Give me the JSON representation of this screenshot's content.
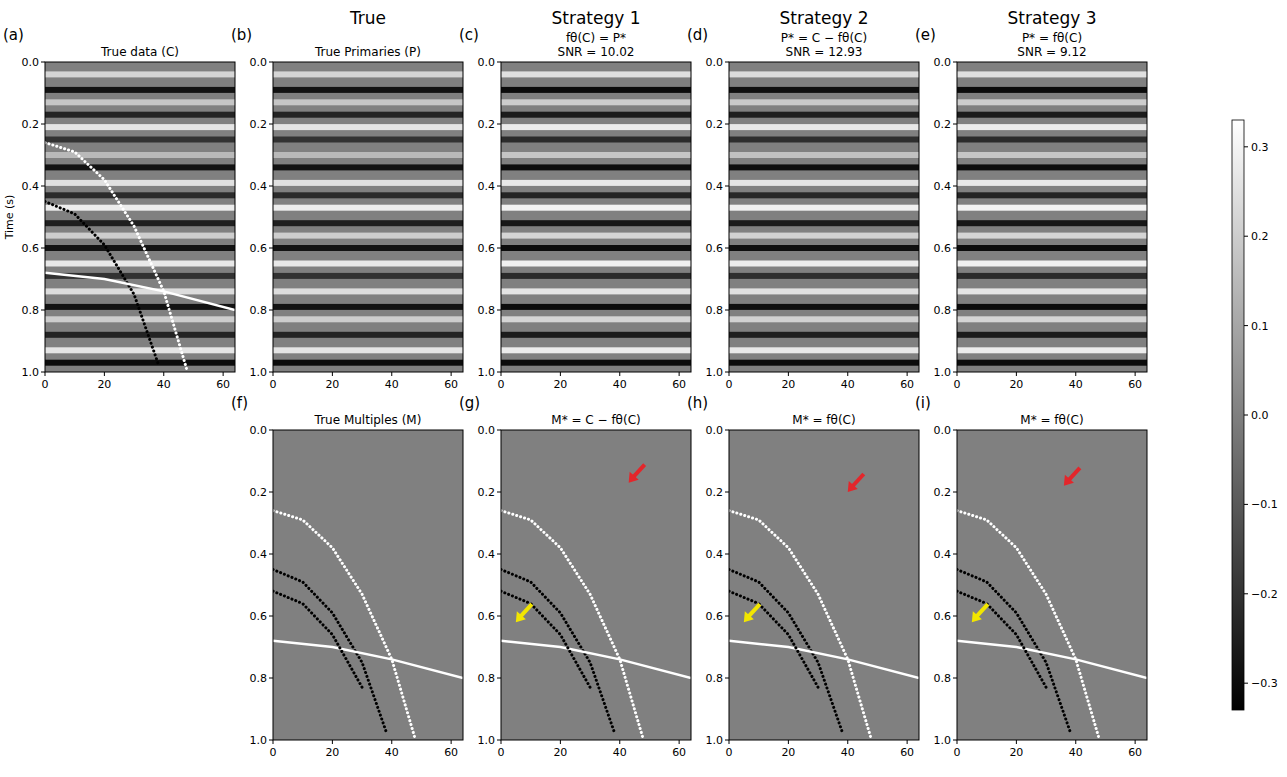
{
  "column_heads": [
    "True",
    "Strategy 1",
    "Strategy 2",
    "Strategy 3"
  ],
  "colorbar": {
    "range": [
      -0.33,
      0.33
    ],
    "ticks": [
      0.3,
      0.2,
      0.1,
      {
        "value": 0,
        "label": "0.0"
      },
      {
        "value": -0.1,
        "label": "−0.1"
      },
      {
        "value": -0.2,
        "label": "−0.2"
      },
      {
        "value": -0.3,
        "label": "−0.3"
      }
    ]
  },
  "chart_data": [
    {
      "type": "image",
      "letter": "(a)",
      "title": "True data (C)",
      "y_label": "Time (s)",
      "xlim": [
        0,
        64
      ],
      "ylim": [
        1.0,
        0
      ],
      "xticks": [
        0,
        20,
        40,
        60
      ],
      "yticks": [
        {
          "value": 0,
          "label": "0.0"
        },
        0.2,
        0.4,
        0.6,
        0.8,
        {
          "value": 1.0,
          "label": "1.0"
        }
      ],
      "reflectors": {
        "times": [
          0.04,
          0.09,
          0.13,
          0.17,
          0.21,
          0.25,
          0.3,
          0.34,
          0.39,
          0.43,
          0.47,
          0.52,
          0.56,
          0.6,
          0.65,
          0.69,
          0.74,
          0.79,
          0.83,
          0.88,
          0.93,
          0.97
        ],
        "amplitudes": [
          0.22,
          -0.28,
          0.18,
          -0.24,
          0.26,
          -0.2,
          0.15,
          -0.28,
          0.25,
          -0.22,
          0.28,
          -0.25,
          0.2,
          -0.28,
          0.27,
          -0.2,
          0.24,
          -0.28,
          0.2,
          -0.24,
          0.26,
          -0.3
        ]
      },
      "series": [
        {
          "color": "#ffffff",
          "line_style": "dotted",
          "x": [
            0,
            10,
            20,
            30,
            40,
            48
          ],
          "values": [
            0.26,
            0.29,
            0.38,
            0.53,
            0.74,
            1.0
          ]
        },
        {
          "color": "#000000",
          "line_style": "dotted",
          "x": [
            0,
            10,
            20,
            30,
            38
          ],
          "values": [
            0.45,
            0.49,
            0.59,
            0.75,
            0.97
          ]
        },
        {
          "color": "#ffffff",
          "line_style": "solid",
          "x": [
            0,
            20,
            40,
            64
          ],
          "values": [
            0.68,
            0.7,
            0.74,
            0.8
          ]
        }
      ]
    },
    {
      "type": "image",
      "letter": "(b)",
      "title": "True Primaries (P)",
      "xlim": [
        0,
        64
      ],
      "ylim": [
        1.0,
        0
      ],
      "xticks": [
        0,
        20,
        40,
        60
      ],
      "yticks": [
        {
          "value": 0,
          "label": "0.0"
        },
        0.2,
        0.4,
        0.6,
        0.8,
        {
          "value": 1.0,
          "label": "1.0"
        }
      ],
      "reflectors": {
        "times": [
          0.04,
          0.09,
          0.13,
          0.17,
          0.21,
          0.25,
          0.3,
          0.34,
          0.39,
          0.43,
          0.47,
          0.52,
          0.56,
          0.6,
          0.65,
          0.69,
          0.74,
          0.79,
          0.83,
          0.88,
          0.93,
          0.97
        ],
        "amplitudes": [
          0.22,
          -0.28,
          0.18,
          -0.24,
          0.26,
          -0.2,
          0.15,
          -0.28,
          0.25,
          -0.22,
          0.28,
          -0.25,
          0.2,
          -0.28,
          0.27,
          -0.2,
          0.24,
          -0.28,
          0.2,
          -0.24,
          0.26,
          -0.3
        ]
      }
    },
    {
      "type": "image",
      "letter": "(c)",
      "title": "fθ(C) = P*",
      "subtitle": "SNR = 10.02",
      "xlim": [
        0,
        64
      ],
      "ylim": [
        1.0,
        0
      ],
      "xticks": [
        0,
        20,
        40,
        60
      ],
      "yticks": [
        {
          "value": 0,
          "label": "0.0"
        },
        0.2,
        0.4,
        0.6,
        0.8,
        {
          "value": 1.0,
          "label": "1.0"
        }
      ],
      "reflectors": {
        "times": [
          0.04,
          0.09,
          0.13,
          0.17,
          0.21,
          0.25,
          0.3,
          0.34,
          0.39,
          0.43,
          0.47,
          0.52,
          0.56,
          0.6,
          0.65,
          0.69,
          0.74,
          0.79,
          0.83,
          0.88,
          0.93,
          0.97
        ],
        "amplitudes": [
          0.25,
          -0.3,
          0.2,
          -0.26,
          0.28,
          -0.22,
          0.18,
          -0.3,
          0.27,
          -0.24,
          0.3,
          -0.27,
          0.22,
          -0.3,
          0.29,
          -0.22,
          0.26,
          -0.3,
          0.22,
          -0.26,
          0.28,
          -0.3
        ]
      }
    },
    {
      "type": "image",
      "letter": "(d)",
      "title": "P* = C − fθ(C)",
      "subtitle": "SNR = 12.93",
      "xlim": [
        0,
        64
      ],
      "ylim": [
        1.0,
        0
      ],
      "xticks": [
        0,
        20,
        40,
        60
      ],
      "yticks": [
        {
          "value": 0,
          "label": "0.0"
        },
        0.2,
        0.4,
        0.6,
        0.8,
        {
          "value": 1.0,
          "label": "1.0"
        }
      ],
      "reflectors": {
        "times": [
          0.04,
          0.09,
          0.13,
          0.17,
          0.21,
          0.25,
          0.3,
          0.34,
          0.39,
          0.43,
          0.47,
          0.52,
          0.56,
          0.6,
          0.65,
          0.69,
          0.74,
          0.79,
          0.83,
          0.88,
          0.93,
          0.97
        ],
        "amplitudes": [
          0.24,
          -0.29,
          0.19,
          -0.25,
          0.27,
          -0.21,
          0.17,
          -0.29,
          0.26,
          -0.23,
          0.29,
          -0.26,
          0.21,
          -0.29,
          0.28,
          -0.21,
          0.25,
          -0.29,
          0.21,
          -0.25,
          0.27,
          -0.3
        ]
      }
    },
    {
      "type": "image",
      "letter": "(e)",
      "title": "P* = fθ(C)",
      "subtitle": "SNR = 9.12",
      "xlim": [
        0,
        64
      ],
      "ylim": [
        1.0,
        0
      ],
      "xticks": [
        0,
        20,
        40,
        60
      ],
      "yticks": [
        {
          "value": 0,
          "label": "0.0"
        },
        0.2,
        0.4,
        0.6,
        0.8,
        {
          "value": 1.0,
          "label": "1.0"
        }
      ],
      "reflectors": {
        "times": [
          0.04,
          0.09,
          0.13,
          0.17,
          0.21,
          0.25,
          0.3,
          0.34,
          0.39,
          0.43,
          0.47,
          0.52,
          0.56,
          0.6,
          0.65,
          0.69,
          0.74,
          0.79,
          0.83,
          0.88,
          0.93,
          0.97
        ],
        "amplitudes": [
          0.25,
          -0.3,
          0.2,
          -0.26,
          0.28,
          -0.22,
          0.18,
          -0.3,
          0.27,
          -0.24,
          0.3,
          -0.27,
          0.22,
          -0.3,
          0.29,
          -0.22,
          0.26,
          -0.3,
          0.22,
          -0.26,
          0.28,
          -0.3
        ]
      }
    },
    {
      "type": "image",
      "letter": "(f)",
      "title": "True Multiples (M)",
      "xlim": [
        0,
        64
      ],
      "ylim": [
        1.0,
        0
      ],
      "xticks": [
        0,
        20,
        40,
        60
      ],
      "yticks": [
        {
          "value": 0,
          "label": "0.0"
        },
        0.2,
        0.4,
        0.6,
        0.8,
        {
          "value": 1.0,
          "label": "1.0"
        }
      ],
      "series": [
        {
          "color": "#ffffff",
          "line_style": "dotted",
          "x": [
            0,
            10,
            20,
            30,
            40,
            48
          ],
          "values": [
            0.26,
            0.29,
            0.38,
            0.53,
            0.74,
            1.0
          ]
        },
        {
          "color": "#000000",
          "line_style": "dotted",
          "x": [
            0,
            10,
            20,
            30,
            38
          ],
          "values": [
            0.45,
            0.49,
            0.59,
            0.75,
            0.97
          ]
        },
        {
          "color": "#ffffff",
          "line_style": "solid",
          "x": [
            0,
            20,
            40,
            64
          ],
          "values": [
            0.68,
            0.7,
            0.74,
            0.8
          ]
        },
        {
          "color": "#000000",
          "line_style": "dotted",
          "x": [
            0,
            10,
            20,
            30
          ],
          "values": [
            0.52,
            0.56,
            0.66,
            0.83
          ]
        }
      ]
    },
    {
      "type": "image",
      "letter": "(g)",
      "title": "M* = C − fθ(C)",
      "xlim": [
        0,
        64
      ],
      "ylim": [
        1.0,
        0
      ],
      "xticks": [
        0,
        20,
        40,
        60
      ],
      "yticks": [
        {
          "value": 0,
          "label": "0.0"
        },
        0.2,
        0.4,
        0.6,
        0.8,
        {
          "value": 1.0,
          "label": "1.0"
        }
      ],
      "series": [
        {
          "color": "#ffffff",
          "line_style": "dotted",
          "x": [
            0,
            10,
            20,
            30,
            40,
            48
          ],
          "values": [
            0.26,
            0.29,
            0.38,
            0.53,
            0.74,
            1.0
          ]
        },
        {
          "color": "#000000",
          "line_style": "dotted",
          "x": [
            0,
            10,
            20,
            30,
            38
          ],
          "values": [
            0.45,
            0.49,
            0.59,
            0.75,
            0.97
          ]
        },
        {
          "color": "#ffffff",
          "line_style": "solid",
          "x": [
            0,
            20,
            40,
            64
          ],
          "values": [
            0.68,
            0.7,
            0.74,
            0.8
          ]
        },
        {
          "color": "#000000",
          "line_style": "dotted",
          "x": [
            0,
            10,
            20,
            30
          ],
          "values": [
            0.52,
            0.56,
            0.66,
            0.83
          ]
        }
      ],
      "annotations": [
        {
          "x": 43,
          "y": 0.17,
          "color": "#e3262b"
        },
        {
          "x": 5,
          "y": 0.62,
          "color": "#f2e600"
        }
      ]
    },
    {
      "type": "image",
      "letter": "(h)",
      "title": "M* = fθ(C)",
      "xlim": [
        0,
        64
      ],
      "ylim": [
        1.0,
        0
      ],
      "xticks": [
        0,
        20,
        40,
        60
      ],
      "yticks": [
        {
          "value": 0,
          "label": "0.0"
        },
        0.2,
        0.4,
        0.6,
        0.8,
        {
          "value": 1.0,
          "label": "1.0"
        }
      ],
      "series": [
        {
          "color": "#ffffff",
          "line_style": "dotted",
          "x": [
            0,
            10,
            20,
            30,
            40,
            48
          ],
          "values": [
            0.26,
            0.29,
            0.38,
            0.53,
            0.74,
            1.0
          ]
        },
        {
          "color": "#000000",
          "line_style": "dotted",
          "x": [
            0,
            10,
            20,
            30,
            38
          ],
          "values": [
            0.45,
            0.49,
            0.59,
            0.75,
            0.97
          ]
        },
        {
          "color": "#ffffff",
          "line_style": "solid",
          "x": [
            0,
            20,
            40,
            64
          ],
          "values": [
            0.68,
            0.7,
            0.74,
            0.8
          ]
        },
        {
          "color": "#000000",
          "line_style": "dotted",
          "x": [
            0,
            10,
            20,
            30
          ],
          "values": [
            0.52,
            0.56,
            0.66,
            0.83
          ]
        }
      ],
      "annotations": [
        {
          "x": 40,
          "y": 0.2,
          "color": "#e3262b"
        },
        {
          "x": 5,
          "y": 0.62,
          "color": "#f2e600"
        }
      ]
    },
    {
      "type": "image",
      "letter": "(i)",
      "title": "M* = fθ(C)",
      "xlim": [
        0,
        64
      ],
      "ylim": [
        1.0,
        0
      ],
      "xticks": [
        0,
        20,
        40,
        60
      ],
      "yticks": [
        {
          "value": 0,
          "label": "0.0"
        },
        0.2,
        0.4,
        0.6,
        0.8,
        {
          "value": 1.0,
          "label": "1.0"
        }
      ],
      "series": [
        {
          "color": "#ffffff",
          "line_style": "dotted",
          "x": [
            0,
            10,
            20,
            30,
            40,
            48
          ],
          "values": [
            0.26,
            0.29,
            0.38,
            0.53,
            0.74,
            1.0
          ]
        },
        {
          "color": "#000000",
          "line_style": "dotted",
          "x": [
            0,
            10,
            20,
            30,
            38
          ],
          "values": [
            0.45,
            0.49,
            0.59,
            0.75,
            0.97
          ]
        },
        {
          "color": "#ffffff",
          "line_style": "solid",
          "x": [
            0,
            20,
            40,
            64
          ],
          "values": [
            0.68,
            0.7,
            0.74,
            0.8
          ]
        },
        {
          "color": "#000000",
          "line_style": "dotted",
          "x": [
            0,
            10,
            20,
            30
          ],
          "values": [
            0.52,
            0.56,
            0.66,
            0.83
          ]
        }
      ],
      "annotations": [
        {
          "x": 36,
          "y": 0.18,
          "color": "#e3262b"
        },
        {
          "x": 5,
          "y": 0.62,
          "color": "#f2e600"
        }
      ]
    }
  ]
}
